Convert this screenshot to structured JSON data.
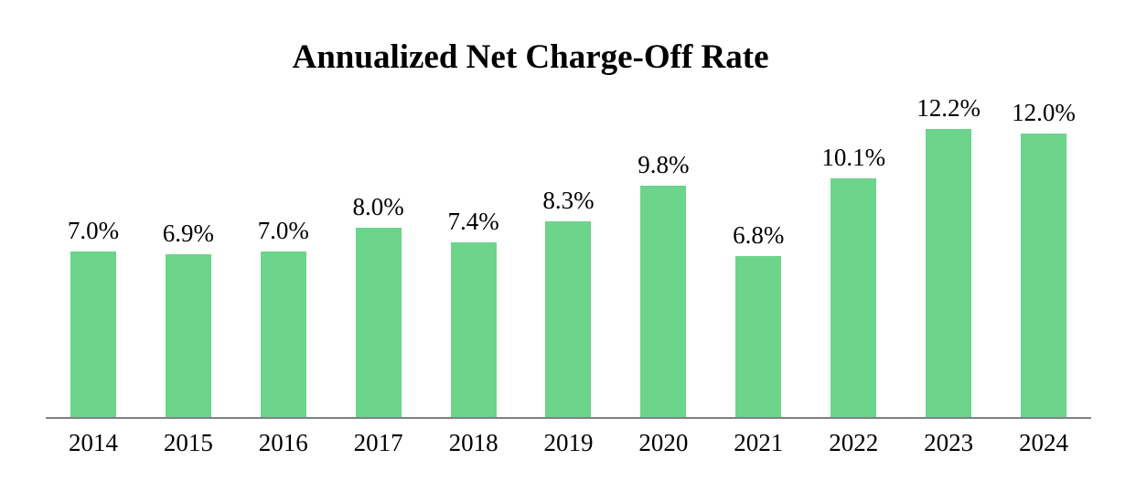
{
  "chart_data": {
    "type": "bar",
    "title": "Annualized Net Charge-Off Rate",
    "categories": [
      "2014",
      "2015",
      "2016",
      "2017",
      "2018",
      "2019",
      "2020",
      "2021",
      "2022",
      "2023",
      "2024"
    ],
    "values": [
      7.0,
      6.9,
      7.0,
      8.0,
      7.4,
      8.3,
      9.8,
      6.8,
      10.1,
      12.2,
      12.0
    ],
    "labels": [
      "7.0%",
      "6.9%",
      "7.0%",
      "8.0%",
      "7.4%",
      "8.3%",
      "9.8%",
      "6.8%",
      "10.1%",
      "12.2%",
      "12.0%"
    ],
    "xlabel": "",
    "ylabel": "",
    "ylim": [
      0,
      13
    ],
    "grid": false,
    "legend_position": "none",
    "bar_color": "#6dd48c",
    "axis_line_color": "#808080",
    "text_color": "#000000",
    "background_color": "#ffffff"
  }
}
